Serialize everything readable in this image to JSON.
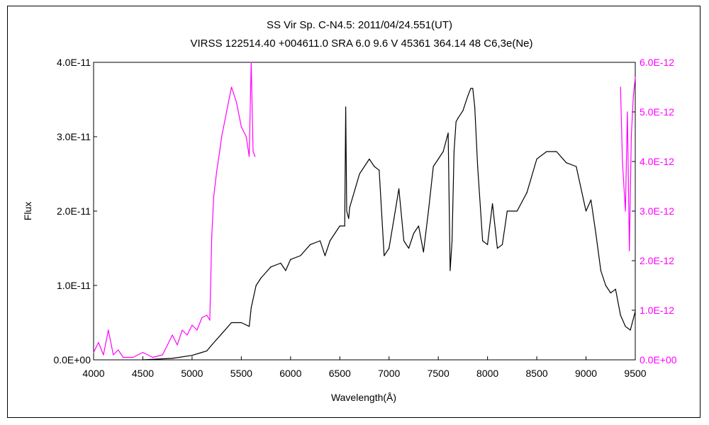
{
  "chart_data": {
    "type": "line",
    "title": "SS Vir    Sp. C-N4.5:    2011/04/24.551(UT)",
    "subtitle": "VIRSS 122514.40 +004611.0 SRA 6.0 9.6 V 45361 364.14 48 C6,3e(Ne)",
    "xlabel": "Wavelength(Å)",
    "ylabel": "Flux",
    "xlim": [
      4000,
      9500
    ],
    "ylim": [
      0,
      4e-11
    ],
    "y2lim": [
      0,
      6e-12
    ],
    "grid": false,
    "xticks": [
      "4000",
      "4500",
      "5000",
      "5500",
      "6000",
      "6500",
      "7000",
      "7500",
      "8000",
      "8500",
      "9000",
      "9500"
    ],
    "yticks": [
      "0.0E+00",
      "1.0E-11",
      "2.0E-11",
      "3.0E-11",
      "4.0E-11"
    ],
    "y2ticks": [
      "0.0E+00",
      "1.0E-12",
      "2.0E-12",
      "3.0E-12",
      "4.0E-12",
      "5.0E-12",
      "6.0E-12"
    ],
    "colors": {
      "primary": "#000000",
      "secondary": "#ff00ff"
    },
    "series": [
      {
        "axis": "left",
        "color": "#000000",
        "x": [
          4500,
          4800,
          5000,
          5100,
          5150,
          5200,
          5300,
          5400,
          5500,
          5580,
          5600,
          5650,
          5700,
          5800,
          5900,
          5950,
          6000,
          6100,
          6200,
          6300,
          6350,
          6400,
          6450,
          6500,
          6550,
          6560,
          6570,
          6590,
          6600,
          6700,
          6800,
          6850,
          6900,
          6950,
          7000,
          7050,
          7100,
          7150,
          7200,
          7250,
          7300,
          7350,
          7400,
          7450,
          7500,
          7550,
          7600,
          7620,
          7640,
          7660,
          7680,
          7700,
          7750,
          7800,
          7830,
          7850,
          7870,
          7900,
          7950,
          8000,
          8050,
          8100,
          8150,
          8200,
          8300,
          8400,
          8500,
          8600,
          8700,
          8800,
          8900,
          9000,
          9050,
          9100,
          9150,
          9200,
          9250,
          9300,
          9350,
          9400,
          9450,
          9500
        ],
        "y": [
          0,
          2e-13,
          6e-13,
          1e-12,
          1.2e-12,
          2e-12,
          3.5e-12,
          5e-12,
          5e-12,
          4.5e-12,
          7e-12,
          1e-11,
          1.1e-11,
          1.25e-11,
          1.3e-11,
          1.2e-11,
          1.35e-11,
          1.4e-11,
          1.55e-11,
          1.6e-11,
          1.4e-11,
          1.6e-11,
          1.7e-11,
          1.8e-11,
          1.8e-11,
          3.4e-11,
          2e-11,
          1.9e-11,
          2.05e-11,
          2.5e-11,
          2.7e-11,
          2.6e-11,
          2.55e-11,
          1.4e-11,
          1.5e-11,
          1.9e-11,
          2.3e-11,
          1.6e-11,
          1.5e-11,
          1.7e-11,
          1.8e-11,
          1.45e-11,
          2e-11,
          2.6e-11,
          2.7e-11,
          2.8e-11,
          3.05e-11,
          1.2e-11,
          1.6e-11,
          2.8e-11,
          3.2e-11,
          3.25e-11,
          3.35e-11,
          3.55e-11,
          3.65e-11,
          3.65e-11,
          3.4e-11,
          2.6e-11,
          1.6e-11,
          1.55e-11,
          2.1e-11,
          1.5e-11,
          1.55e-11,
          2e-11,
          2e-11,
          2.25e-11,
          2.7e-11,
          2.8e-11,
          2.8e-11,
          2.65e-11,
          2.6e-11,
          2e-11,
          2.15e-11,
          1.7e-11,
          1.2e-11,
          1e-11,
          9e-12,
          9.5e-12,
          6e-12,
          4.5e-12,
          4e-12,
          6.5e-12
        ]
      },
      {
        "axis": "right",
        "color": "#ff00ff",
        "x": [
          4000,
          4050,
          4100,
          4150,
          4200,
          4250,
          4300,
          4400,
          4500,
          4600,
          4700,
          4750,
          4800,
          4850,
          4900,
          4950,
          5000,
          5050,
          5100,
          5150,
          5180,
          5200,
          5220,
          5250,
          5280,
          5300,
          5320,
          5350,
          5380,
          5400,
          5450,
          5500,
          5550,
          5580,
          5600,
          5620,
          5640,
          9350,
          9370,
          9400,
          9420,
          9440,
          9460,
          9480,
          9500
        ],
        "y": [
          1.5e-13,
          3.5e-13,
          1e-13,
          6e-13,
          1e-13,
          2e-13,
          5e-14,
          5e-14,
          1.5e-13,
          5e-14,
          1e-13,
          3e-13,
          5e-13,
          3e-13,
          6e-13,
          5e-13,
          7e-13,
          6e-13,
          8.5e-13,
          9e-13,
          8e-13,
          2.5e-12,
          3.3e-12,
          3.8e-12,
          4.2e-12,
          4.5e-12,
          4.7e-12,
          5e-12,
          5.3e-12,
          5.5e-12,
          5.2e-12,
          4.7e-12,
          4.5e-12,
          4.1e-12,
          6e-12,
          4.2e-12,
          4.1e-12,
          5.5e-12,
          4e-12,
          3e-12,
          5e-12,
          2.2e-12,
          4.5e-12,
          5.3e-12,
          5.7e-12
        ]
      }
    ]
  }
}
